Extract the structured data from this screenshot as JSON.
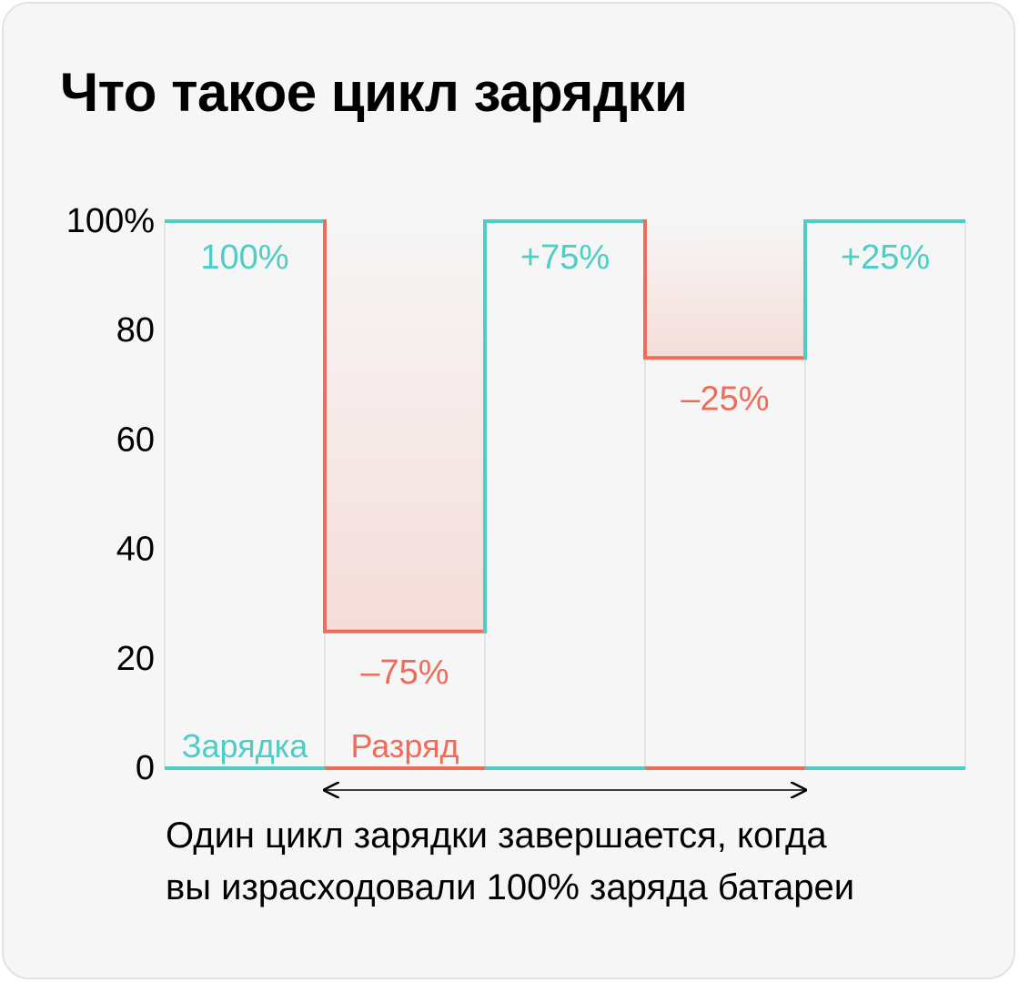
{
  "title": "Что такое цикл зарядки",
  "caption": {
    "line1": "Один цикл зарядки завершается, когда",
    "line2": "вы израсходовали 100% заряда батареи"
  },
  "colors": {
    "charge": "#4ecdc4",
    "discharge": "#ef6b5a",
    "grid": "#dddddd",
    "text": "#000000",
    "background": "#f6f6f6"
  },
  "chart_data": {
    "type": "line",
    "ylim": [
      0,
      100
    ],
    "yticks": [
      "100%",
      "80",
      "60",
      "40",
      "20",
      "0"
    ],
    "legend": {
      "charge": "Зарядка",
      "discharge": "Разряд"
    },
    "segments": [
      {
        "kind": "charge",
        "from": 0,
        "to": 100,
        "label": "100%"
      },
      {
        "kind": "discharge",
        "from": 100,
        "to": 25,
        "label": "–75%"
      },
      {
        "kind": "charge",
        "from": 25,
        "to": 100,
        "label": "+75%"
      },
      {
        "kind": "discharge",
        "from": 100,
        "to": 75,
        "label": "–25%"
      },
      {
        "kind": "charge",
        "from": 75,
        "to": 100,
        "label": "+25%"
      }
    ],
    "cycle_span": {
      "start_segment": 1,
      "end_segment": 3
    }
  }
}
